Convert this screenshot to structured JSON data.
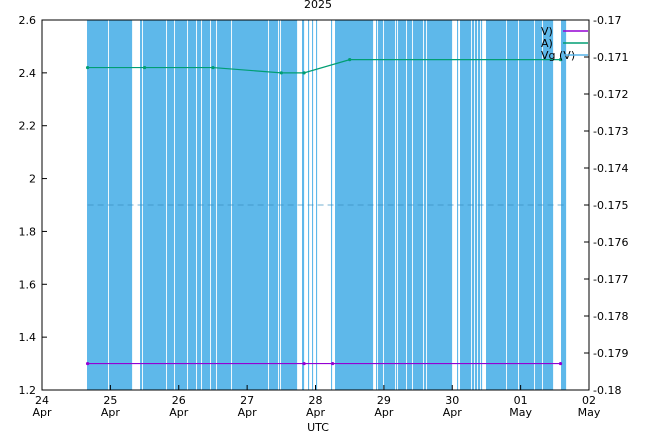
{
  "chart_data": {
    "type": "line",
    "title": "2025",
    "xlabel": "UTC",
    "x_range": [
      "2025-04-24",
      "2025-05-02"
    ],
    "x_ticks": [
      {
        "line1": "24",
        "line2": "Apr"
      },
      {
        "line1": "25",
        "line2": "Apr"
      },
      {
        "line1": "26",
        "line2": "Apr"
      },
      {
        "line1": "27",
        "line2": "Apr"
      },
      {
        "line1": "28",
        "line2": "Apr"
      },
      {
        "line1": "29",
        "line2": "Apr"
      },
      {
        "line1": "30",
        "line2": "Apr"
      },
      {
        "line1": "01",
        "line2": "May"
      },
      {
        "line1": "02",
        "line2": "May"
      }
    ],
    "y_left": {
      "range": [
        1.2,
        2.6
      ],
      "ticks": [
        "1.2",
        "1.4",
        "1.6",
        "1.8",
        "2",
        "2.2",
        "2.4",
        "2.6"
      ]
    },
    "y_right": {
      "range": [
        -0.18,
        -0.17
      ],
      "ticks": [
        "-0.18",
        "-0.179",
        "-0.178",
        "-0.177",
        "-0.176",
        "-0.175",
        "-0.174",
        "-0.173",
        "-0.172",
        "-0.171",
        "-0.17"
      ]
    },
    "legend_position": "top-right",
    "series": [
      {
        "name": "V)",
        "color": "#9400d3",
        "axis": "left",
        "x": [
          "2025-04-24 16:00",
          "2025-04-27 20:00",
          "2025-04-28 06:00",
          "2025-05-01 14:00"
        ],
        "values": [
          1.3,
          1.3,
          1.3,
          1.3
        ]
      },
      {
        "name": "A)",
        "color": "#009e73",
        "axis": "left",
        "x": [
          "2025-04-24 16:00",
          "2025-04-25 12:00",
          "2025-04-26 12:00",
          "2025-04-27 12:00",
          "2025-04-27 20:00",
          "2025-04-28 12:00",
          "2025-05-01 14:00"
        ],
        "values": [
          2.42,
          2.42,
          2.42,
          2.4,
          2.4,
          2.45,
          2.45
        ]
      },
      {
        "name": "Vg (V)",
        "color": "#56b4e9",
        "axis": "right",
        "x": [
          "2025-04-24 16:00",
          "2025-05-01 16:00"
        ],
        "values": [
          -0.175,
          -0.175
        ]
      }
    ]
  }
}
